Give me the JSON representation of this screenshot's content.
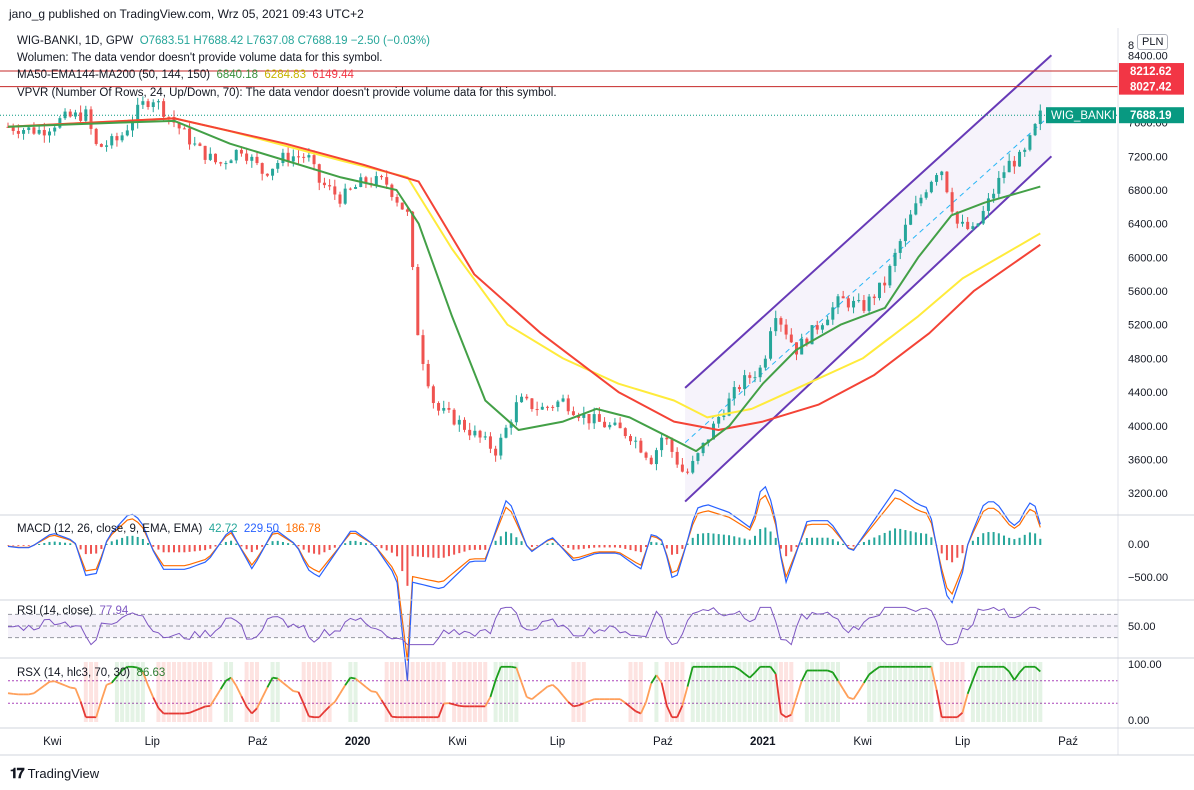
{
  "header": {
    "credit": "jano_g published on TradingView.com, Wrz 05, 2021 09:43 UTC+2"
  },
  "legend": {
    "symbol": "WIG-BANKI, 1D, GPW",
    "ohlc": "O7683.51  H7688.42  L7637.08  C7688.19  −2.50 (−0.03%)",
    "volume": "Wolumen: The data vendor doesn't provide volume data for this symbol.",
    "ma_name": "MA50-EMA144-MA200 (50, 144, 150)",
    "ma50": "6840.18",
    "ema144": "6284.83",
    "ma200": "6149.44",
    "vpvr": "VPVR (Number Of Rows, 24, Up/Down, 70): The data vendor doesn't provide volume data for this symbol.",
    "macd_name": "MACD (12, 26, close, 9, EMA, EMA)",
    "macd_hist": "42.72",
    "macd_line": "229.50",
    "macd_signal": "186.78",
    "rsi_name": "RSI (14, close)",
    "rsi_value": "77.94",
    "rsx_name": "RSX (14, hlc3, 70, 30)",
    "rsx_value": "86.63"
  },
  "currency": "PLN",
  "price_axis": {
    "top_partial": "8",
    "labels": [
      "8400.00",
      "7600.00",
      "7200.00",
      "6800.00",
      "6400.00",
      "6000.00",
      "5600.00",
      "5200.00",
      "4800.00",
      "4400.00",
      "4000.00",
      "3600.00",
      "3200.00"
    ],
    "tags": [
      {
        "label": "8212.62",
        "color": "#f23645"
      },
      {
        "label": "8027.42",
        "color": "#f23645"
      },
      {
        "label": "7688.19",
        "color": "#089981",
        "symbol": "WIG_BANKI"
      }
    ]
  },
  "macd_axis": [
    "0.00",
    "−500.00"
  ],
  "rsi_axis": [
    "50.00"
  ],
  "rsx_axis": [
    "100.00",
    "0.00"
  ],
  "time_axis": [
    "Kwi",
    "Lip",
    "Paź",
    "2020",
    "Kwi",
    "Lip",
    "Paź",
    "2021",
    "Kwi",
    "Lip",
    "Paź"
  ],
  "footer": {
    "brand": "TradingView"
  },
  "colors": {
    "up": "#26a69a",
    "down": "#ef5350",
    "ma50": "#43a047",
    "ema144": "#ffeb3b",
    "ma200": "#f44336",
    "channel": "#673ab7",
    "macd": "#2962ff",
    "signal": "#ff6d00",
    "rsi": "#7e57c2"
  },
  "chart_data": {
    "type": "candlestick",
    "symbol": "WIG-BANKI",
    "interval": "1D",
    "ylim": [
      3000,
      8700
    ],
    "horizontal_lines": [
      8212.62,
      8027.42
    ],
    "last_price": 7688.19,
    "price_path": [
      {
        "t": 0.0,
        "p": 7550
      },
      {
        "t": 0.03,
        "p": 7500
      },
      {
        "t": 0.05,
        "p": 7650
      },
      {
        "t": 0.07,
        "p": 7700
      },
      {
        "t": 0.08,
        "p": 7300
      },
      {
        "t": 0.1,
        "p": 7400
      },
      {
        "t": 0.12,
        "p": 7800
      },
      {
        "t": 0.13,
        "p": 7900
      },
      {
        "t": 0.15,
        "p": 7600
      },
      {
        "t": 0.17,
        "p": 7300
      },
      {
        "t": 0.19,
        "p": 7100
      },
      {
        "t": 0.21,
        "p": 7300
      },
      {
        "t": 0.23,
        "p": 7000
      },
      {
        "t": 0.25,
        "p": 7200
      },
      {
        "t": 0.27,
        "p": 7200
      },
      {
        "t": 0.28,
        "p": 6900
      },
      {
        "t": 0.3,
        "p": 6700
      },
      {
        "t": 0.32,
        "p": 6900
      },
      {
        "t": 0.34,
        "p": 6900
      },
      {
        "t": 0.36,
        "p": 6500
      },
      {
        "t": 0.37,
        "p": 5000
      },
      {
        "t": 0.385,
        "p": 4200
      },
      {
        "t": 0.4,
        "p": 4100
      },
      {
        "t": 0.42,
        "p": 3900
      },
      {
        "t": 0.44,
        "p": 3700
      },
      {
        "t": 0.46,
        "p": 4300
      },
      {
        "t": 0.48,
        "p": 4200
      },
      {
        "t": 0.5,
        "p": 4300
      },
      {
        "t": 0.52,
        "p": 4100
      },
      {
        "t": 0.54,
        "p": 4000
      },
      {
        "t": 0.56,
        "p": 3900
      },
      {
        "t": 0.58,
        "p": 3600
      },
      {
        "t": 0.59,
        "p": 3900
      },
      {
        "t": 0.61,
        "p": 3400
      },
      {
        "t": 0.62,
        "p": 3600
      },
      {
        "t": 0.64,
        "p": 4100
      },
      {
        "t": 0.66,
        "p": 4500
      },
      {
        "t": 0.68,
        "p": 4700
      },
      {
        "t": 0.69,
        "p": 5400
      },
      {
        "t": 0.71,
        "p": 4900
      },
      {
        "t": 0.73,
        "p": 5200
      },
      {
        "t": 0.75,
        "p": 5500
      },
      {
        "t": 0.77,
        "p": 5400
      },
      {
        "t": 0.79,
        "p": 5700
      },
      {
        "t": 0.81,
        "p": 6400
      },
      {
        "t": 0.83,
        "p": 6900
      },
      {
        "t": 0.84,
        "p": 7100
      },
      {
        "t": 0.855,
        "p": 6400
      },
      {
        "t": 0.87,
        "p": 6300
      },
      {
        "t": 0.885,
        "p": 6700
      },
      {
        "t": 0.9,
        "p": 7100
      },
      {
        "t": 0.915,
        "p": 7200
      },
      {
        "t": 0.93,
        "p": 7688
      }
    ],
    "ma50_path": [
      {
        "t": 0.0,
        "p": 7550
      },
      {
        "t": 0.1,
        "p": 7600
      },
      {
        "t": 0.15,
        "p": 7620
      },
      {
        "t": 0.2,
        "p": 7350
      },
      {
        "t": 0.25,
        "p": 7150
      },
      {
        "t": 0.3,
        "p": 6950
      },
      {
        "t": 0.35,
        "p": 6800
      },
      {
        "t": 0.37,
        "p": 6400
      },
      {
        "t": 0.4,
        "p": 5300
      },
      {
        "t": 0.43,
        "p": 4300
      },
      {
        "t": 0.46,
        "p": 3950
      },
      {
        "t": 0.5,
        "p": 4050
      },
      {
        "t": 0.53,
        "p": 4200
      },
      {
        "t": 0.56,
        "p": 4100
      },
      {
        "t": 0.59,
        "p": 3900
      },
      {
        "t": 0.62,
        "p": 3700
      },
      {
        "t": 0.65,
        "p": 4000
      },
      {
        "t": 0.68,
        "p": 4500
      },
      {
        "t": 0.71,
        "p": 4900
      },
      {
        "t": 0.75,
        "p": 5200
      },
      {
        "t": 0.79,
        "p": 5400
      },
      {
        "t": 0.82,
        "p": 6000
      },
      {
        "t": 0.85,
        "p": 6500
      },
      {
        "t": 0.88,
        "p": 6650
      },
      {
        "t": 0.93,
        "p": 6840
      }
    ],
    "ema144_path": [
      {
        "t": 0.0,
        "p": 7550
      },
      {
        "t": 0.15,
        "p": 7650
      },
      {
        "t": 0.2,
        "p": 7500
      },
      {
        "t": 0.3,
        "p": 7150
      },
      {
        "t": 0.36,
        "p": 6950
      },
      {
        "t": 0.4,
        "p": 6100
      },
      {
        "t": 0.45,
        "p": 5200
      },
      {
        "t": 0.5,
        "p": 4800
      },
      {
        "t": 0.55,
        "p": 4500
      },
      {
        "t": 0.6,
        "p": 4300
      },
      {
        "t": 0.63,
        "p": 4100
      },
      {
        "t": 0.67,
        "p": 4200
      },
      {
        "t": 0.72,
        "p": 4500
      },
      {
        "t": 0.77,
        "p": 4800
      },
      {
        "t": 0.82,
        "p": 5300
      },
      {
        "t": 0.86,
        "p": 5750
      },
      {
        "t": 0.93,
        "p": 6285
      }
    ],
    "ma200_path": [
      {
        "t": 0.0,
        "p": 7550
      },
      {
        "t": 0.15,
        "p": 7650
      },
      {
        "t": 0.25,
        "p": 7350
      },
      {
        "t": 0.32,
        "p": 7100
      },
      {
        "t": 0.37,
        "p": 6900
      },
      {
        "t": 0.42,
        "p": 5800
      },
      {
        "t": 0.48,
        "p": 5100
      },
      {
        "t": 0.55,
        "p": 4400
      },
      {
        "t": 0.6,
        "p": 4050
      },
      {
        "t": 0.64,
        "p": 3950
      },
      {
        "t": 0.68,
        "p": 4050
      },
      {
        "t": 0.73,
        "p": 4250
      },
      {
        "t": 0.78,
        "p": 4600
      },
      {
        "t": 0.83,
        "p": 5100
      },
      {
        "t": 0.87,
        "p": 5600
      },
      {
        "t": 0.93,
        "p": 6150
      }
    ],
    "channel": {
      "upper": [
        {
          "t": 0.61,
          "p": 4450
        },
        {
          "t": 0.94,
          "p": 8400
        }
      ],
      "middle": [
        {
          "t": 0.61,
          "p": 3800
        },
        {
          "t": 0.94,
          "p": 7700
        }
      ],
      "lower": [
        {
          "t": 0.61,
          "p": 3100
        },
        {
          "t": 0.94,
          "p": 7200
        }
      ]
    },
    "indicators": {
      "macd": {
        "latest_line": 229.5,
        "latest_signal": 186.78,
        "latest_hist": 42.72,
        "ylim": [
          -700,
          350
        ]
      },
      "rsi": {
        "latest": 77.94,
        "upper_band": 70,
        "lower_band": 30,
        "ylim": [
          0,
          100
        ]
      },
      "rsx": {
        "latest": 86.63,
        "overbought": 70,
        "oversold": 30,
        "ylim": [
          0,
          100
        ]
      }
    }
  }
}
